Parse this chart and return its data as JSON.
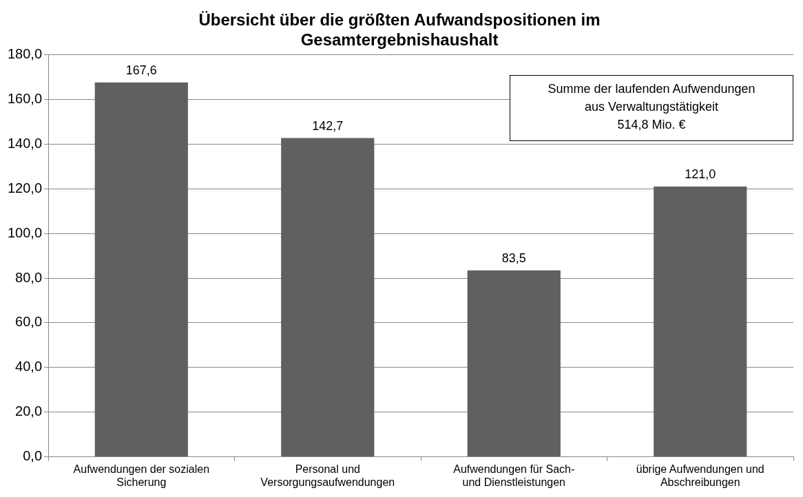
{
  "chart_data": {
    "type": "bar",
    "title": "Übersicht über die größten Aufwandspositionen im Gesamtergebnishaushalt",
    "categories": [
      "Aufwendungen der sozialen Sicherung",
      "Personal und Versorgungsaufwendungen",
      "Aufwendungen für Sach- und Dienstleistungen",
      "übrige Aufwendungen und Abschreibungen"
    ],
    "values": [
      167.6,
      142.7,
      83.5,
      121.0
    ],
    "value_labels": [
      "167,6",
      "142,7",
      "83,5",
      "121,0"
    ],
    "color": "#606060",
    "ylim": [
      0,
      180
    ],
    "yticks": [
      {
        "value": 0,
        "label": "0,0"
      },
      {
        "value": 20,
        "label": "20,0"
      },
      {
        "value": 40,
        "label": "40,0"
      },
      {
        "value": 60,
        "label": "60,0"
      },
      {
        "value": 80,
        "label": "80,0"
      },
      {
        "value": 100,
        "label": "100,0"
      },
      {
        "value": 120,
        "label": "120,0"
      },
      {
        "value": 140,
        "label": "140,0"
      },
      {
        "value": 160,
        "label": "160,0"
      },
      {
        "value": 180,
        "label": "180,0"
      }
    ],
    "grid": "y",
    "legend": false,
    "annotations": [
      "Summe der laufenden Aufwendungen\naus Verwaltungstätigkeit\n514,8 Mio. €"
    ]
  }
}
